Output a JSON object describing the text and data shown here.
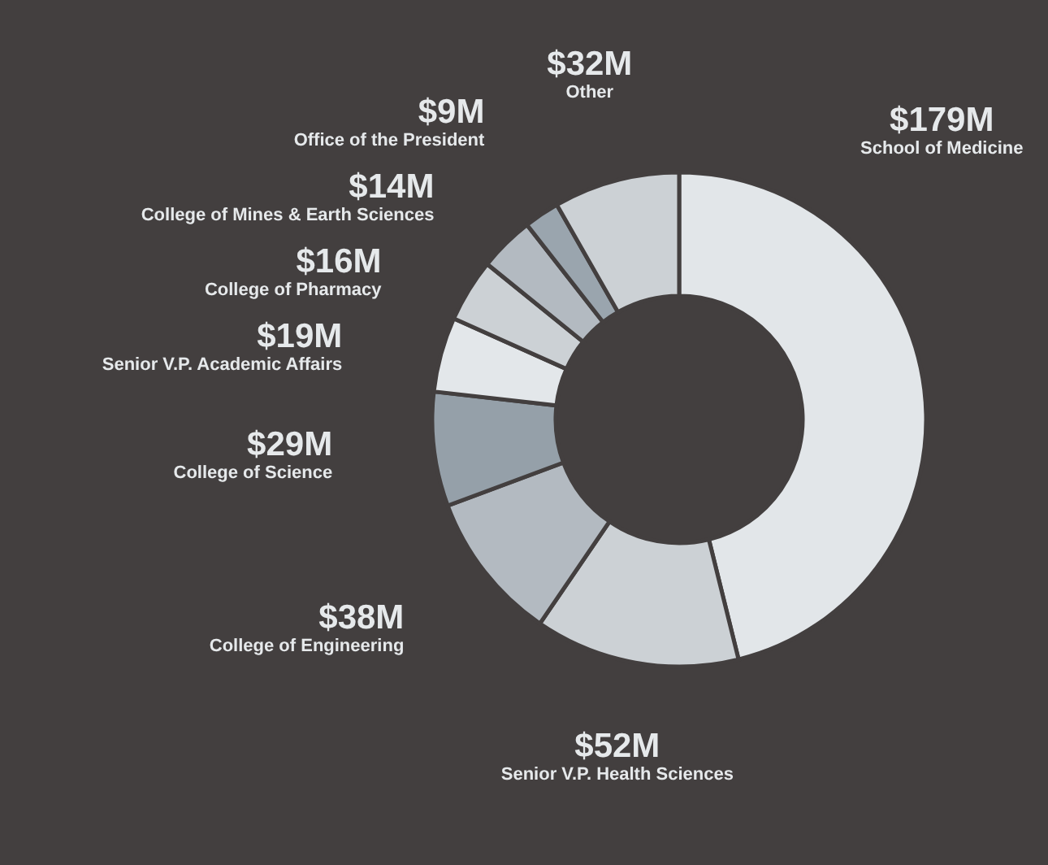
{
  "chart_data": {
    "type": "donut",
    "categories": [
      "School of Medicine",
      "Senior V.P. Health Sciences",
      "College of Engineering",
      "College of Science",
      "Senior V.P. Academic Affairs",
      "College of Pharmacy",
      "College of Mines & Earth Sciences",
      "Office of the President",
      "Other"
    ],
    "values": [
      179,
      52,
      38,
      29,
      19,
      16,
      14,
      9,
      32
    ],
    "value_labels": [
      "$179M",
      "$52M",
      "$38M",
      "$29M",
      "$19M",
      "$16M",
      "$14M",
      "$9M",
      "$32M"
    ],
    "colors": [
      "#e2e6e9",
      "#ccd1d5",
      "#b3bac1",
      "#95a0a9",
      "#e3e7ea",
      "#ccd1d5",
      "#b3bac1",
      "#9aa5ae",
      "#ccd1d5"
    ]
  }
}
